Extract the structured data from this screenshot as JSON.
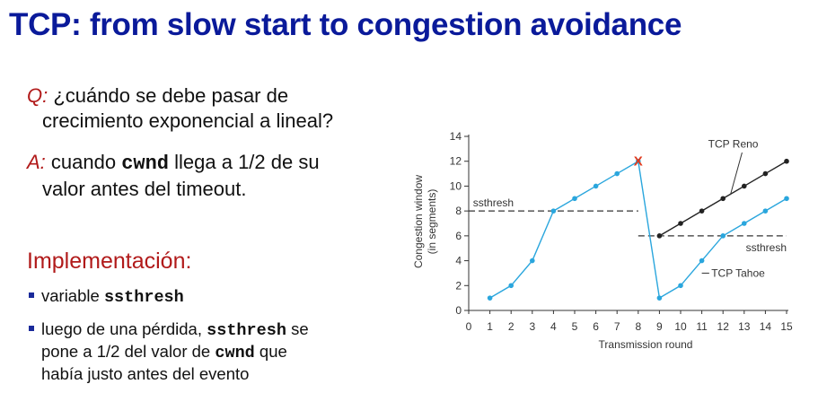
{
  "slide": {
    "title": "TCP: from slow start to congestion avoidance",
    "q_label": "Q:",
    "q_line1": " ¿cuándo se debe pasar de",
    "q_line2": "crecimiento exponencial a lineal?",
    "a_label": "A:",
    "a_pre": " cuando ",
    "a_code": "cwnd",
    "a_post": " llega a 1/2 de su",
    "a_line2": "valor antes del timeout.",
    "impl_heading": "Implementación:",
    "b1_pre": "variable ",
    "b1_code": "ssthresh",
    "b2_pre": "luego de una pérdida, ",
    "b2_code": "ssthresh",
    "b2_post": " se",
    "b2_line2_pre": "pone a 1/2 del valor de ",
    "b2_line2_code": "cwnd",
    "b2_line2_post": "  que",
    "b2_line3": "había justo antes del evento"
  },
  "chart_data": {
    "type": "line",
    "xlabel": "Transmission round",
    "ylabel": "Congestion window",
    "ylabel_sub": "(in segments)",
    "xlim": [
      0,
      15
    ],
    "ylim": [
      0,
      14
    ],
    "xticks": [
      "0",
      "1",
      "2",
      "3",
      "4",
      "5",
      "6",
      "7",
      "8",
      "9",
      "10",
      "11",
      "12",
      "13",
      "14",
      "15"
    ],
    "yticks": [
      "0",
      "2",
      "4",
      "6",
      "8",
      "10",
      "12",
      "14"
    ],
    "series": [
      {
        "name": "TCP Tahoe",
        "color": "#2aa6dd",
        "x": [
          1,
          2,
          3,
          4,
          5,
          6,
          7,
          8,
          9,
          10,
          11,
          12,
          13,
          14,
          15
        ],
        "y": [
          1,
          2,
          4,
          8,
          9,
          10,
          11,
          12,
          1,
          2,
          4,
          6,
          7,
          8,
          9
        ]
      },
      {
        "name": "TCP Reno",
        "color": "#222222",
        "x": [
          9,
          10,
          11,
          12,
          13,
          14,
          15
        ],
        "y": [
          6,
          7,
          8,
          9,
          10,
          11,
          12
        ]
      }
    ],
    "ssthresh_lines": [
      {
        "label": "ssthresh",
        "y": 8,
        "x_from": 0,
        "x_to": 8
      },
      {
        "label": "ssthresh",
        "y": 6,
        "x_from": 8,
        "x_to": 15
      }
    ],
    "loss_marker": {
      "x": 8,
      "y": 12,
      "symbol": "X",
      "color": "#e03a1e"
    },
    "series_labels": {
      "reno": "TCP Reno",
      "tahoe": "TCP Tahoe"
    }
  }
}
